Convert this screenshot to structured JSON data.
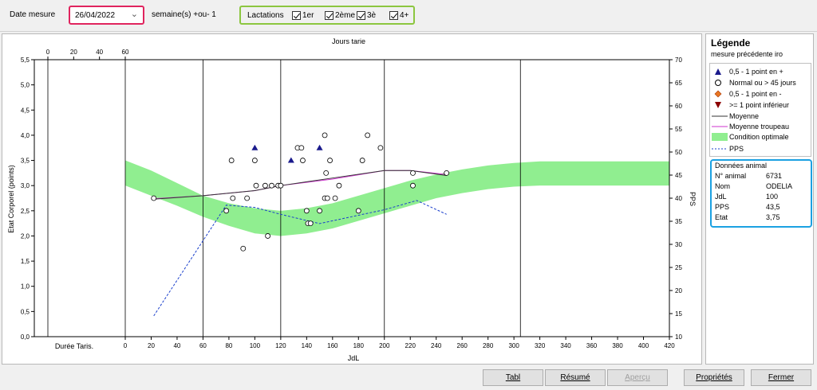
{
  "toolbar": {
    "date_label": "Date mesure",
    "date_value": "26/04/2022",
    "weeks_label": "semaine(s) +ou- 1",
    "lactations_label": "Lactations",
    "lactations": [
      {
        "label": "1er",
        "checked": true
      },
      {
        "label": "2ème",
        "checked": true
      },
      {
        "label": "3è",
        "checked": true
      },
      {
        "label": "4+",
        "checked": true
      }
    ]
  },
  "chart_data": {
    "type": "scatter",
    "top_axis_title": "Jours tarie",
    "top_ticks": [
      "0",
      "20",
      "40",
      "60"
    ],
    "xlabel": "JdL",
    "x_ticks": [
      "0",
      "20",
      "40",
      "60",
      "80",
      "100",
      "120",
      "140",
      "160",
      "180",
      "200",
      "220",
      "240",
      "260",
      "280",
      "300",
      "320",
      "340",
      "360",
      "380",
      "400",
      "420"
    ],
    "dry_label": "Durée Taris.",
    "ylabel": "Etat Corporel (points)",
    "y_ticks": [
      "0,0",
      "0,5",
      "1,0",
      "1,5",
      "2,0",
      "2,5",
      "3,0",
      "3,5",
      "4,0",
      "4,5",
      "5,0",
      "5,5"
    ],
    "ylim": [
      0,
      5.5
    ],
    "y2label": "PPS",
    "y2_ticks": [
      "10",
      "15",
      "20",
      "25",
      "30",
      "35",
      "40",
      "45",
      "50",
      "55",
      "60",
      "65",
      "70"
    ],
    "y2lim": [
      10,
      70
    ],
    "xlim": [
      0,
      420
    ],
    "vertical_lines": [
      60,
      120,
      200,
      305
    ],
    "optimal_band": [
      {
        "x": 0,
        "lo": 3.0,
        "hi": 3.5
      },
      {
        "x": 20,
        "lo": 2.8,
        "hi": 3.3
      },
      {
        "x": 40,
        "lo": 2.6,
        "hi": 3.05
      },
      {
        "x": 60,
        "lo": 2.38,
        "hi": 2.8
      },
      {
        "x": 80,
        "lo": 2.2,
        "hi": 2.65
      },
      {
        "x": 100,
        "lo": 2.05,
        "hi": 2.55
      },
      {
        "x": 120,
        "lo": 2.0,
        "hi": 2.5
      },
      {
        "x": 140,
        "lo": 2.05,
        "hi": 2.55
      },
      {
        "x": 160,
        "lo": 2.15,
        "hi": 2.65
      },
      {
        "x": 180,
        "lo": 2.3,
        "hi": 2.8
      },
      {
        "x": 200,
        "lo": 2.45,
        "hi": 2.95
      },
      {
        "x": 220,
        "lo": 2.6,
        "hi": 3.1
      },
      {
        "x": 240,
        "lo": 2.75,
        "hi": 3.22
      },
      {
        "x": 260,
        "lo": 2.85,
        "hi": 3.32
      },
      {
        "x": 280,
        "lo": 2.93,
        "hi": 3.4
      },
      {
        "x": 300,
        "lo": 2.98,
        "hi": 3.45
      },
      {
        "x": 320,
        "lo": 3.0,
        "hi": 3.48
      },
      {
        "x": 420,
        "lo": 3.0,
        "hi": 3.48
      }
    ],
    "moyenne": [
      [
        22,
        2.73
      ],
      [
        60,
        2.8
      ],
      [
        100,
        2.9
      ],
      [
        120,
        3.0
      ],
      [
        160,
        3.15
      ],
      [
        200,
        3.3
      ],
      [
        220,
        3.3
      ],
      [
        248,
        3.2
      ]
    ],
    "moyenne_troupeau": [
      [
        22,
        2.74
      ],
      [
        60,
        2.8
      ],
      [
        100,
        2.9
      ],
      [
        120,
        3.0
      ],
      [
        160,
        3.13
      ],
      [
        200,
        3.3
      ],
      [
        220,
        3.3
      ],
      [
        248,
        3.22
      ]
    ],
    "pps": [
      [
        22,
        14.5
      ],
      [
        78,
        38.5
      ],
      [
        100,
        38
      ],
      [
        120,
        36.5
      ],
      [
        150,
        34.5
      ],
      [
        200,
        37.5
      ],
      [
        225,
        39.5
      ],
      [
        248,
        36.5
      ]
    ],
    "normal_points": [
      [
        22,
        2.75
      ],
      [
        78,
        2.5
      ],
      [
        82,
        3.5
      ],
      [
        83,
        2.75
      ],
      [
        91,
        1.75
      ],
      [
        94,
        2.75
      ],
      [
        100,
        3.5
      ],
      [
        101,
        3.0
      ],
      [
        108,
        3.0
      ],
      [
        110,
        2.0
      ],
      [
        113,
        3.0
      ],
      [
        118,
        3.0
      ],
      [
        120,
        3.0
      ],
      [
        133,
        3.75
      ],
      [
        136,
        3.75
      ],
      [
        137,
        3.5
      ],
      [
        140,
        2.5
      ],
      [
        141,
        2.25
      ],
      [
        143,
        2.25
      ],
      [
        150,
        2.5
      ],
      [
        154,
        4.0
      ],
      [
        154,
        2.75
      ],
      [
        155,
        3.25
      ],
      [
        156,
        2.75
      ],
      [
        158,
        3.5
      ],
      [
        162,
        2.75
      ],
      [
        165,
        3.0
      ],
      [
        180,
        2.5
      ],
      [
        183,
        3.5
      ],
      [
        187,
        4.0
      ],
      [
        197,
        3.75
      ],
      [
        222,
        3.25
      ],
      [
        222,
        3.0
      ],
      [
        248,
        3.25
      ]
    ],
    "triangle_up_points": [
      [
        100,
        3.75
      ],
      [
        128,
        3.5
      ],
      [
        150,
        3.75
      ]
    ]
  },
  "legend": {
    "title": "Légende",
    "subtitle": "mesure précédente iro",
    "items": [
      {
        "symbol": "triangle-up",
        "label": "0,5 - 1 point en +"
      },
      {
        "symbol": "circle",
        "label": "Normal ou > 45 jours"
      },
      {
        "symbol": "diamond",
        "label": "0,5 - 1 point en -"
      },
      {
        "symbol": "triangle-down",
        "label": ">= 1 point inférieur"
      },
      {
        "symbol": "line-black",
        "label": "Moyenne"
      },
      {
        "symbol": "line-magenta",
        "label": "Moyenne troupeau"
      },
      {
        "symbol": "band-green",
        "label": "Condition optimale"
      },
      {
        "symbol": "dash-blue",
        "label": "PPS"
      }
    ]
  },
  "animal": {
    "title": "Données animal",
    "rows": [
      {
        "key": "N° animal",
        "value": "6731"
      },
      {
        "key": "Nom",
        "value": "ODELIA"
      },
      {
        "key": "JdL",
        "value": "100"
      },
      {
        "key": "PPS",
        "value": "43,5"
      },
      {
        "key": "Etat",
        "value": "3,75"
      }
    ]
  },
  "buttons": {
    "tabl": "Tabl",
    "resume": "Résumé",
    "apercu": "Aperçu",
    "proprietes": "Propriétés",
    "fermer": "Fermer"
  },
  "colors": {
    "band": "#90ee90",
    "moyenne": "#333333",
    "moyenne_troupeau": "#cc33cc",
    "pps": "#1a3fcc",
    "triangle_up": "#1a1a8c",
    "diamond": "#e87722",
    "triangle_down": "#8b0000",
    "date_highlight": "#e0245e",
    "lact_highlight": "#8cc63f",
    "animal_highlight": "#1ba1e2"
  }
}
